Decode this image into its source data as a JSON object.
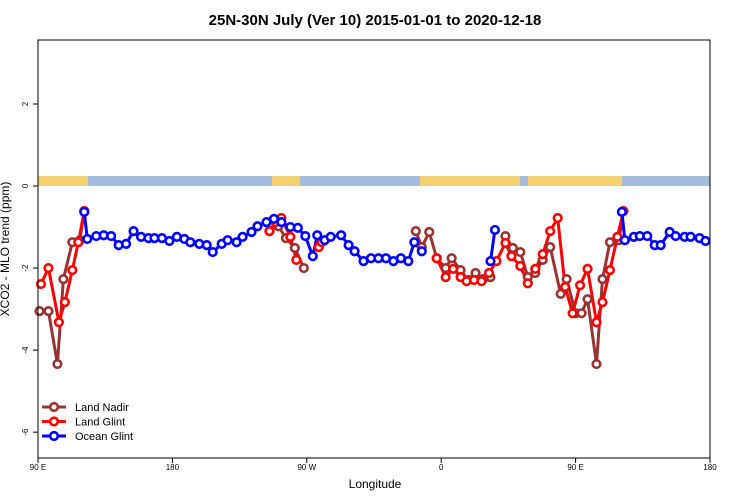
{
  "chart_data": {
    "type": "line",
    "title": "25N-30N July (Ver 10)   2015-01-01 to 2020-12-18",
    "x_label": "Longitude",
    "y_label": "XCO2 - MLO trend (ppm)",
    "xlim": [
      90,
      540
    ],
    "ylim": [
      -6.63,
      3.56
    ],
    "xticks": [
      {
        "value": 90,
        "label": "90 E"
      },
      180,
      {
        "value": 270,
        "label": "90 W"
      },
      {
        "value": 360,
        "label": "0"
      },
      {
        "value": 450,
        "label": "90 E"
      },
      {
        "value": 540,
        "label": "180"
      }
    ],
    "yticks": [
      -6,
      -4,
      -2,
      0,
      2
    ],
    "legend": "bottom-left",
    "series": [
      {
        "name": "Land Nadir",
        "color": "#993333",
        "x": [
          91,
          97,
          103,
          107,
          113,
          118,
          121,
          null,
          245,
          251,
          256,
          262,
          268,
          null,
          343,
          347,
          352,
          357,
          363,
          367,
          373,
          378,
          383,
          388,
          393,
          null,
          403,
          408,
          413,
          418,
          423,
          428,
          433,
          440,
          444,
          450,
          454,
          458,
          464,
          468,
          473,
          479,
          482
        ],
        "values": [
          -3.05,
          -3.05,
          -4.34,
          -2.27,
          -1.37,
          -1.32,
          -0.61,
          null,
          -1.1,
          -0.98,
          -1.27,
          -1.51,
          -2.0,
          null,
          -1.1,
          -1.49,
          -1.12,
          -1.76,
          -2.0,
          -1.76,
          -2.05,
          -2.29,
          -2.12,
          -2.27,
          -2.22,
          null,
          -1.22,
          -1.51,
          -1.61,
          -2.22,
          -2.12,
          -1.8,
          -1.49,
          -2.63,
          -2.27,
          -3.1,
          -3.1,
          -2.76,
          -4.34,
          -2.27,
          -1.37,
          -1.32,
          -0.61
        ]
      },
      {
        "name": "Land Glint",
        "color": "#ff0000",
        "x": [
          92,
          97,
          104,
          108,
          113,
          117,
          121,
          null,
          245,
          249,
          253,
          259,
          263,
          null,
          278,
          280,
          null,
          357,
          363,
          368,
          373,
          377,
          382,
          387,
          392,
          397,
          403,
          407,
          413,
          418,
          423,
          428,
          433,
          438,
          443,
          448,
          453,
          458,
          464,
          468,
          473,
          478,
          482
        ],
        "values": [
          -2.39,
          -2.0,
          -3.32,
          -2.83,
          -2.05,
          -1.37,
          -0.61,
          null,
          -1.1,
          -0.88,
          -0.78,
          -1.24,
          -1.8,
          null,
          -1.49,
          -1.37,
          null,
          -1.76,
          -2.22,
          -2.02,
          -2.22,
          -2.32,
          -2.29,
          -2.32,
          -2.12,
          -1.83,
          -1.39,
          -1.71,
          -1.95,
          -2.37,
          -2.02,
          -1.66,
          -1.1,
          -0.78,
          -2.46,
          -3.1,
          -2.42,
          -2.02,
          -3.32,
          -2.83,
          -2.05,
          -1.24,
          -0.61
        ]
      },
      {
        "name": "Ocean Glint",
        "color": "#0000ff",
        "x": [
          121,
          123,
          129,
          134,
          139,
          144,
          149,
          154,
          159,
          164,
          168,
          173,
          178,
          183,
          188,
          192,
          198,
          203,
          207,
          213,
          217,
          223,
          227,
          233,
          237,
          243,
          248,
          253,
          259,
          264,
          269,
          274,
          277,
          282,
          286,
          293,
          298,
          302,
          308,
          313,
          318,
          323,
          328,
          333,
          338,
          342,
          347,
          null,
          393,
          396,
          null,
          481,
          483,
          489,
          493,
          498,
          503,
          507,
          513,
          517,
          523,
          527,
          533,
          537
        ],
        "values": [
          -0.63,
          -1.29,
          -1.22,
          -1.2,
          -1.22,
          -1.44,
          -1.41,
          -1.1,
          -1.24,
          -1.27,
          -1.27,
          -1.27,
          -1.34,
          -1.24,
          -1.29,
          -1.37,
          -1.41,
          -1.44,
          -1.61,
          -1.41,
          -1.32,
          -1.37,
          -1.24,
          -1.12,
          -0.98,
          -0.88,
          -0.8,
          -0.88,
          -1.0,
          -1.02,
          -1.22,
          -1.71,
          -1.2,
          -1.32,
          -1.24,
          -1.2,
          -1.44,
          -1.59,
          -1.83,
          -1.76,
          -1.76,
          -1.76,
          -1.83,
          -1.76,
          -1.83,
          -1.37,
          -1.59,
          null,
          -1.83,
          -1.07,
          null,
          -0.63,
          -1.32,
          -1.24,
          -1.22,
          -1.22,
          -1.44,
          -1.44,
          -1.12,
          -1.22,
          -1.24,
          -1.24,
          -1.27,
          -1.34
        ]
      }
    ]
  }
}
